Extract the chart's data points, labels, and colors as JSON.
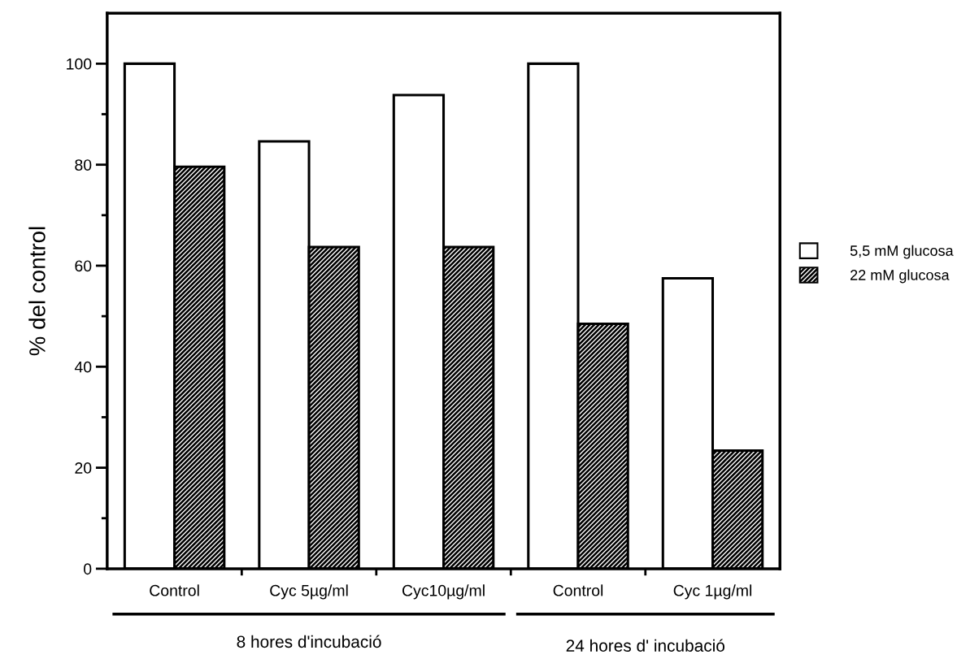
{
  "chart_data": {
    "type": "bar",
    "ylabel": "% del control",
    "categories": [
      "Control",
      "Cyc 5µg/ml",
      "Cyc10µg/ml",
      "Control",
      "Cyc 1µg/ml"
    ],
    "series": [
      {
        "name": "5,5 mM glucosa",
        "color": "#ffffff",
        "values": [
          100,
          84.6,
          93.8,
          100,
          57.5
        ]
      },
      {
        "name": "22 mM glucosa",
        "color": "#000000",
        "values": [
          79.6,
          63.7,
          63.7,
          48.5,
          23.4
        ]
      }
    ],
    "ylim": [
      0,
      110
    ],
    "yticks": [
      0,
      20,
      40,
      60,
      80,
      100
    ],
    "grid": false,
    "legend": "right",
    "annotations": [
      "8 hores d'incubació",
      "24 hores d' incubació"
    ]
  }
}
